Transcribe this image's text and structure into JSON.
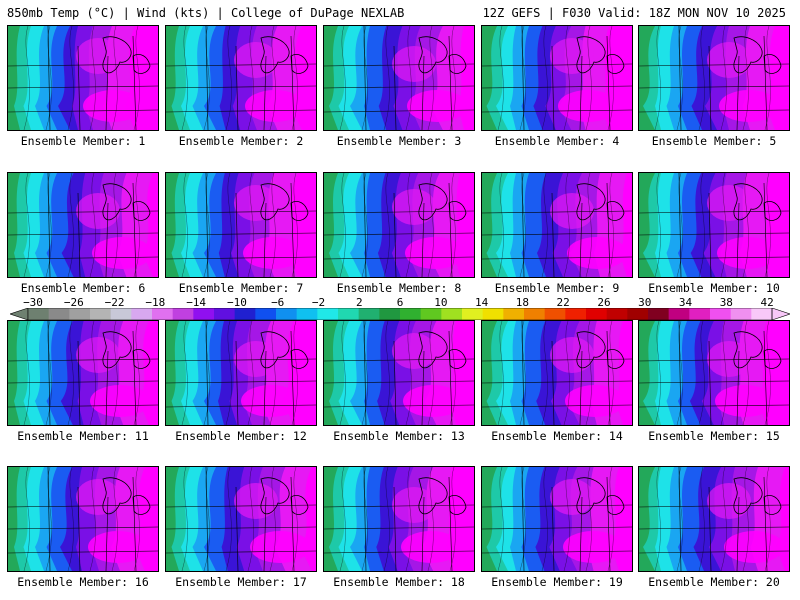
{
  "header": {
    "left_title": "850mb Temp (°C) | Wind (kts) | College of DuPage NEXLAB",
    "right_title": "12Z GEFS | F030 Valid: 18Z MON NOV 10 2025"
  },
  "panels": [
    {
      "label": "Ensemble Member: 1"
    },
    {
      "label": "Ensemble Member: 2"
    },
    {
      "label": "Ensemble Member: 3"
    },
    {
      "label": "Ensemble Member: 4"
    },
    {
      "label": "Ensemble Member: 5"
    },
    {
      "label": "Ensemble Member: 6"
    },
    {
      "label": "Ensemble Member: 7"
    },
    {
      "label": "Ensemble Member: 8"
    },
    {
      "label": "Ensemble Member: 9"
    },
    {
      "label": "Ensemble Member: 10"
    },
    {
      "label": "Ensemble Member: 11"
    },
    {
      "label": "Ensemble Member: 12"
    },
    {
      "label": "Ensemble Member: 13"
    },
    {
      "label": "Ensemble Member: 14"
    },
    {
      "label": "Ensemble Member: 15"
    },
    {
      "label": "Ensemble Member: 16"
    },
    {
      "label": "Ensemble Member: 17"
    },
    {
      "label": "Ensemble Member: 18"
    },
    {
      "label": "Ensemble Member: 19"
    },
    {
      "label": "Ensemble Member: 20"
    }
  ],
  "colorbar": {
    "tick_labels": [
      "−30",
      "−26",
      "−22",
      "−18",
      "−14",
      "−10",
      "−6",
      "−2",
      "2",
      "6",
      "10",
      "14",
      "18",
      "22",
      "26",
      "30",
      "34",
      "38",
      "42"
    ],
    "colors": [
      "#6e8070",
      "#8a8a8a",
      "#a0a0a0",
      "#b4b4b4",
      "#c8c8d8",
      "#d8a8f0",
      "#e070f0",
      "#c040e0",
      "#9010f0",
      "#6010e0",
      "#2020d0",
      "#1050f0",
      "#1090f0",
      "#10c0f0",
      "#20e8e8",
      "#20d8b0",
      "#20b070",
      "#209840",
      "#30b030",
      "#60c820",
      "#a0e020",
      "#e0f020",
      "#f0e000",
      "#f0b000",
      "#f08000",
      "#f05000",
      "#f02000",
      "#e00000",
      "#c00000",
      "#a00000",
      "#800020",
      "#c00080",
      "#e020c0",
      "#f050f0",
      "#f090f0",
      "#f8c8f8"
    ],
    "palette": {
      "deep_magenta": "#ff00ff",
      "magenta": "#e619f4",
      "purple": "#a517e6",
      "violet": "#7a10e6",
      "indigo": "#3a14d6",
      "blue": "#1a5cf2",
      "sky": "#1aa6f2",
      "cyan": "#1ee2e8",
      "teal": "#1ec9a8",
      "green": "#23a85a"
    }
  }
}
